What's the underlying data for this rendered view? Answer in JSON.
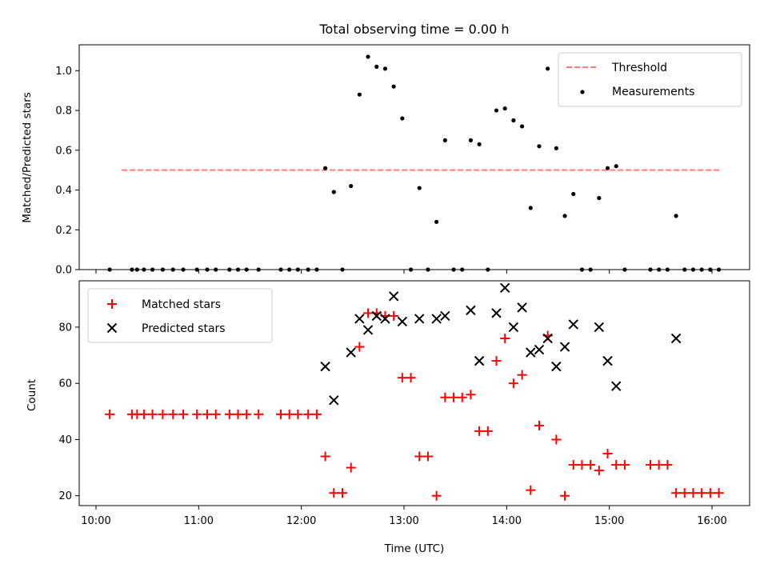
{
  "chart_data": {
    "type": "scatter",
    "title": "Total observing time = 0.00 h",
    "xlabel": "Time (UTC)",
    "x_tick_labels": [
      "10:00",
      "11:00",
      "12:00",
      "13:00",
      "14:00",
      "15:00",
      "16:00"
    ],
    "colors": {
      "threshold": "#ff7f7f",
      "measurements": "#000000",
      "matched": "#ff0000",
      "predicted": "#000000"
    },
    "panels": [
      {
        "id": "ratio",
        "ylabel": "Matched/Predicted stars",
        "ylim": [
          0,
          1.13
        ],
        "y_ticks": [
          0,
          0.2,
          0.4,
          0.6,
          0.8,
          1.0
        ],
        "y_tick_labels": [
          "0.0",
          "0.2",
          "0.4",
          "0.6",
          "0.8",
          "1.0"
        ],
        "legend_position": "top-right",
        "series": [
          {
            "name": "Threshold",
            "style": "dashed-line",
            "points": [
              [
                "10:15",
                0.5
              ],
              [
                "16:05",
                0.5
              ]
            ]
          },
          {
            "name": "Measurements",
            "style": "dot",
            "points": [
              [
                "10:08",
                0
              ],
              [
                "10:21",
                0
              ],
              [
                "10:24",
                0
              ],
              [
                "10:28",
                0
              ],
              [
                "10:33",
                0
              ],
              [
                "10:39",
                0
              ],
              [
                "10:45",
                0
              ],
              [
                "10:51",
                0
              ],
              [
                "10:59",
                0
              ],
              [
                "11:05",
                0
              ],
              [
                "11:10",
                0
              ],
              [
                "11:18",
                0
              ],
              [
                "11:23",
                0
              ],
              [
                "11:28",
                0
              ],
              [
                "11:35",
                0
              ],
              [
                "11:48",
                0
              ],
              [
                "11:53",
                0
              ],
              [
                "11:58",
                0
              ],
              [
                "12:04",
                0
              ],
              [
                "12:09",
                0
              ],
              [
                "12:14",
                0.51
              ],
              [
                "12:19",
                0.39
              ],
              [
                "12:24",
                0
              ],
              [
                "12:29",
                0.42
              ],
              [
                "12:34",
                0.88
              ],
              [
                "12:39",
                1.07
              ],
              [
                "12:44",
                1.02
              ],
              [
                "12:49",
                1.01
              ],
              [
                "12:54",
                0.92
              ],
              [
                "12:59",
                0.76
              ],
              [
                "13:04",
                0
              ],
              [
                "13:09",
                0.41
              ],
              [
                "13:14",
                0
              ],
              [
                "13:19",
                0.24
              ],
              [
                "13:24",
                0.65
              ],
              [
                "13:29",
                0
              ],
              [
                "13:34",
                0
              ],
              [
                "13:39",
                0.65
              ],
              [
                "13:44",
                0.63
              ],
              [
                "13:49",
                0
              ],
              [
                "13:54",
                0.8
              ],
              [
                "13:59",
                0.81
              ],
              [
                "14:04",
                0.75
              ],
              [
                "14:09",
                0.72
              ],
              [
                "14:14",
                0.31
              ],
              [
                "14:19",
                0.62
              ],
              [
                "14:24",
                1.01
              ],
              [
                "14:29",
                0.61
              ],
              [
                "14:34",
                0.27
              ],
              [
                "14:39",
                0.38
              ],
              [
                "14:44",
                0
              ],
              [
                "14:49",
                0
              ],
              [
                "14:54",
                0.36
              ],
              [
                "14:59",
                0.51
              ],
              [
                "15:04",
                0.52
              ],
              [
                "15:09",
                0
              ],
              [
                "15:24",
                0
              ],
              [
                "15:29",
                0
              ],
              [
                "15:34",
                0
              ],
              [
                "15:39",
                0.27
              ],
              [
                "15:44",
                0
              ],
              [
                "15:49",
                0
              ],
              [
                "15:54",
                0
              ],
              [
                "15:59",
                0
              ],
              [
                "16:04",
                0
              ]
            ]
          }
        ]
      },
      {
        "id": "counts",
        "ylabel": "Count",
        "ylim": [
          16.5,
          96.5
        ],
        "y_ticks": [
          20,
          40,
          60,
          80
        ],
        "y_tick_labels": [
          "20",
          "40",
          "60",
          "80"
        ],
        "legend_position": "top-left",
        "series": [
          {
            "name": "Matched stars",
            "style": "plus",
            "points": [
              [
                "10:08",
                49
              ],
              [
                "10:21",
                49
              ],
              [
                "10:24",
                49
              ],
              [
                "10:28",
                49
              ],
              [
                "10:33",
                49
              ],
              [
                "10:39",
                49
              ],
              [
                "10:45",
                49
              ],
              [
                "10:51",
                49
              ],
              [
                "10:59",
                49
              ],
              [
                "11:05",
                49
              ],
              [
                "11:10",
                49
              ],
              [
                "11:18",
                49
              ],
              [
                "11:23",
                49
              ],
              [
                "11:28",
                49
              ],
              [
                "11:35",
                49
              ],
              [
                "11:48",
                49
              ],
              [
                "11:53",
                49
              ],
              [
                "11:58",
                49
              ],
              [
                "12:04",
                49
              ],
              [
                "12:09",
                49
              ],
              [
                "12:14",
                34
              ],
              [
                "12:19",
                21
              ],
              [
                "12:24",
                21
              ],
              [
                "12:29",
                30
              ],
              [
                "12:34",
                73
              ],
              [
                "12:39",
                85
              ],
              [
                "12:44",
                85
              ],
              [
                "12:49",
                84
              ],
              [
                "12:54",
                84
              ],
              [
                "12:59",
                62
              ],
              [
                "13:04",
                62
              ],
              [
                "13:09",
                34
              ],
              [
                "13:14",
                34
              ],
              [
                "13:19",
                20
              ],
              [
                "13:24",
                55
              ],
              [
                "13:29",
                55
              ],
              [
                "13:34",
                55
              ],
              [
                "13:39",
                56
              ],
              [
                "13:44",
                43
              ],
              [
                "13:49",
                43
              ],
              [
                "13:54",
                68
              ],
              [
                "13:59",
                76
              ],
              [
                "14:04",
                60
              ],
              [
                "14:09",
                63
              ],
              [
                "14:14",
                22
              ],
              [
                "14:19",
                45
              ],
              [
                "14:24",
                77
              ],
              [
                "14:29",
                40
              ],
              [
                "14:34",
                20
              ],
              [
                "14:39",
                31
              ],
              [
                "14:44",
                31
              ],
              [
                "14:49",
                31
              ],
              [
                "14:54",
                29
              ],
              [
                "14:59",
                35
              ],
              [
                "15:04",
                31
              ],
              [
                "15:09",
                31
              ],
              [
                "15:24",
                31
              ],
              [
                "15:29",
                31
              ],
              [
                "15:34",
                31
              ],
              [
                "15:39",
                21
              ],
              [
                "15:44",
                21
              ],
              [
                "15:49",
                21
              ],
              [
                "15:54",
                21
              ],
              [
                "15:59",
                21
              ],
              [
                "16:04",
                21
              ]
            ]
          },
          {
            "name": "Predicted stars",
            "style": "x",
            "points": [
              [
                "12:14",
                66
              ],
              [
                "12:19",
                54
              ],
              [
                "12:29",
                71
              ],
              [
                "12:34",
                83
              ],
              [
                "12:39",
                79
              ],
              [
                "12:44",
                84
              ],
              [
                "12:49",
                83
              ],
              [
                "12:54",
                91
              ],
              [
                "12:59",
                82
              ],
              [
                "13:09",
                83
              ],
              [
                "13:19",
                83
              ],
              [
                "13:24",
                84
              ],
              [
                "13:39",
                86
              ],
              [
                "13:44",
                68
              ],
              [
                "13:54",
                85
              ],
              [
                "13:59",
                94
              ],
              [
                "14:04",
                80
              ],
              [
                "14:09",
                87
              ],
              [
                "14:14",
                71
              ],
              [
                "14:19",
                72
              ],
              [
                "14:24",
                76
              ],
              [
                "14:29",
                66
              ],
              [
                "14:34",
                73
              ],
              [
                "14:39",
                81
              ],
              [
                "14:54",
                80
              ],
              [
                "14:59",
                68
              ],
              [
                "15:04",
                59
              ],
              [
                "15:39",
                76
              ]
            ]
          }
        ]
      }
    ]
  }
}
